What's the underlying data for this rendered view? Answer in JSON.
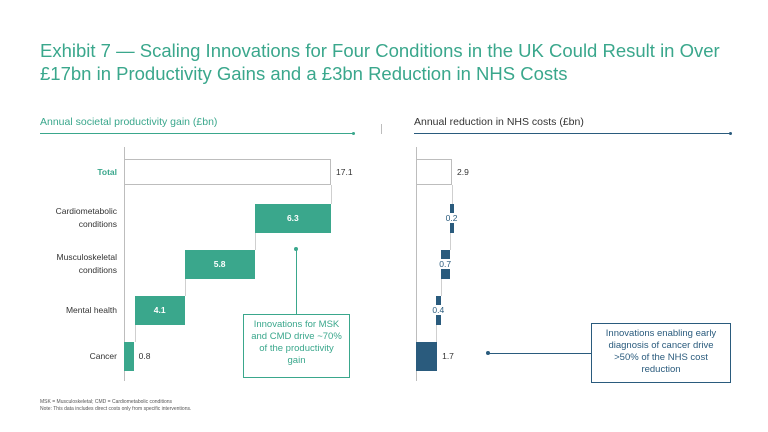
{
  "title": "Exhibit 7 — Scaling Innovations for Four Conditions in the UK Could Result in Over £17bn in Productivity Gains and a £3bn Reduction in NHS Costs",
  "colors": {
    "teal": "#3aa78c",
    "navy": "#2a5b7d",
    "grey": "#bdbdbd"
  },
  "categories": [
    "Total",
    "Cardiometabolic\nconditions",
    "Musculoskeletal\nconditions",
    "Mental health",
    "Cancer"
  ],
  "chart_data": [
    {
      "type": "bar",
      "subtype": "waterfall",
      "title": "Annual societal productivity gain (£bn)",
      "color": "#3aa78c",
      "categories": [
        "Total",
        "Cardiometabolic\nconditions",
        "Musculoskeletal\nconditions",
        "Mental health",
        "Cancer"
      ],
      "values": [
        17.1,
        6.3,
        5.8,
        4.1,
        0.8
      ],
      "labels": [
        "17.1",
        "6.3",
        "5.8",
        "4.1",
        "0.8"
      ],
      "xlim": [
        0,
        17.1
      ]
    },
    {
      "type": "bar",
      "subtype": "waterfall",
      "title": "Annual reduction in NHS costs (£bn)",
      "color": "#2a5b7d",
      "categories": [
        "Total",
        "Cardiometabolic\nconditions",
        "Musculoskeletal\nconditions",
        "Mental health",
        "Cancer"
      ],
      "values": [
        2.9,
        0.2,
        0.7,
        0.4,
        1.7
      ],
      "labels": [
        "2.9",
        "0.2",
        "0.7",
        "0.4",
        "1.7"
      ],
      "xlim": [
        0,
        2.9
      ]
    }
  ],
  "callouts": [
    {
      "text": "Innovations for MSK and CMD drive ~70% of the productivity gain"
    },
    {
      "text": "Innovations enabling early diagnosis of cancer drive >50% of the NHS cost reduction"
    }
  ],
  "footnotes": [
    "MSK = Musculoskeletal; CMD = Cardiometabolic conditions",
    "Note: This data includes direct costs only from specific interventions."
  ]
}
